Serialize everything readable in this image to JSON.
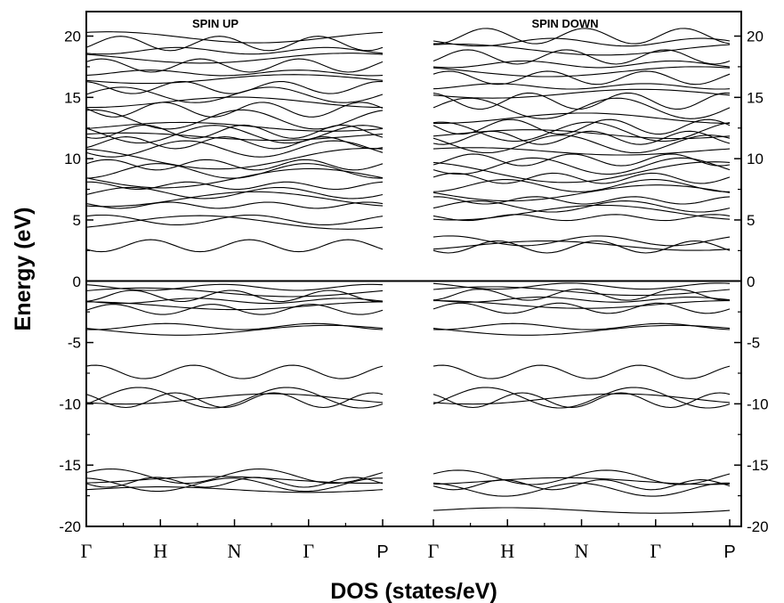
{
  "chart_data": {
    "type": "line",
    "xlabel": "DOS (states/eV)",
    "ylabel": "Energy (eV)",
    "ylim": [
      -20,
      22
    ],
    "yticks": [
      -20,
      -15,
      -10,
      -5,
      0,
      5,
      10,
      15,
      20
    ],
    "k_points": [
      "Γ",
      "H",
      "N",
      "Γ",
      "P"
    ],
    "zero_line": 0,
    "panels": [
      {
        "name": "SPIN UP",
        "approx_band_centers_eV": [
          -17.0,
          -16.6,
          -16.4,
          -16.2,
          -15.9,
          -9.7,
          -9.6,
          -9.5,
          -7.4,
          -4.0,
          -3.7,
          -2.3,
          -2.0,
          -1.6,
          -1.2,
          -0.9,
          -0.5,
          2.9,
          4.8,
          5.0,
          6.2,
          6.7,
          7.2,
          7.8,
          8.4,
          9.0,
          9.5,
          10.0,
          10.8,
          11.3,
          11.8,
          12.0,
          12.2,
          12.6,
          13.2,
          14.0,
          14.6,
          15.2,
          15.8,
          16.5,
          17.0,
          17.6,
          18.2,
          18.8,
          19.4,
          19.9
        ]
      },
      {
        "name": "SPIN DOWN",
        "approx_band_centers_eV": [
          -18.7,
          -17.0,
          -16.6,
          -16.3,
          -16.0,
          -9.7,
          -9.6,
          -9.5,
          -7.4,
          -4.0,
          -3.7,
          -2.2,
          -1.9,
          -1.5,
          -1.1,
          -0.8,
          -0.4,
          2.8,
          2.9,
          3.3,
          5.2,
          5.6,
          6.1,
          6.6,
          7.2,
          7.8,
          8.4,
          8.9,
          9.4,
          9.9,
          10.6,
          11.2,
          11.7,
          12.0,
          12.2,
          12.6,
          13.3,
          14.1,
          14.7,
          15.3,
          15.9,
          16.6,
          17.1,
          17.7,
          18.3,
          18.9,
          19.5,
          20.0
        ]
      }
    ]
  }
}
